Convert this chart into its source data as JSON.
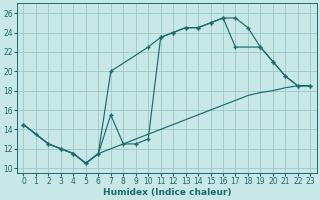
{
  "xlabel": "Humidex (Indice chaleur)",
  "bg_color": "#c8e8e8",
  "grid_color": "#9cc8c8",
  "line_color": "#1a6b6b",
  "xlim": [
    -0.5,
    23.5
  ],
  "ylim": [
    9.5,
    27.0
  ],
  "line1_x": [
    0,
    1,
    2,
    3,
    4,
    5,
    6,
    7,
    8,
    9,
    10,
    11,
    12,
    13,
    14,
    15,
    16,
    17,
    18,
    19,
    20,
    21,
    22,
    23
  ],
  "line1_y": [
    14.5,
    13.5,
    12.5,
    12.0,
    11.5,
    10.5,
    11.5,
    15.5,
    12.5,
    12.5,
    13.0,
    23.5,
    24.0,
    24.5,
    24.5,
    25.0,
    25.5,
    25.5,
    24.5,
    22.5,
    21.0,
    19.5,
    18.5,
    18.5
  ],
  "line2_x": [
    0,
    1,
    2,
    3,
    4,
    5,
    6,
    7,
    8,
    9,
    10,
    11,
    12,
    13,
    14,
    15,
    16,
    17,
    18,
    19,
    20,
    21,
    22,
    23
  ],
  "line2_y": [
    14.5,
    13.5,
    12.5,
    12.0,
    11.5,
    10.5,
    11.5,
    12.0,
    12.5,
    13.0,
    13.5,
    14.0,
    14.5,
    15.0,
    15.5,
    16.0,
    16.5,
    17.0,
    17.5,
    17.8,
    18.0,
    18.3,
    18.5,
    18.5
  ],
  "line3_x": [
    0,
    2,
    3,
    4,
    5,
    6,
    7,
    10,
    11,
    12,
    13,
    14,
    15,
    16,
    17,
    19,
    20,
    21,
    22,
    23
  ],
  "line3_y": [
    14.5,
    12.5,
    12.0,
    11.5,
    10.5,
    11.5,
    20.0,
    22.5,
    23.5,
    24.0,
    24.5,
    24.5,
    25.0,
    25.5,
    22.5,
    22.5,
    21.0,
    19.5,
    18.5,
    18.5
  ],
  "xticks": [
    0,
    1,
    2,
    3,
    4,
    5,
    6,
    7,
    8,
    9,
    10,
    11,
    12,
    13,
    14,
    15,
    16,
    17,
    18,
    19,
    20,
    21,
    22,
    23
  ],
  "yticks": [
    10,
    12,
    14,
    16,
    18,
    20,
    22,
    24,
    26
  ],
  "tick_fontsize": 5.5,
  "label_fontsize": 6.5
}
